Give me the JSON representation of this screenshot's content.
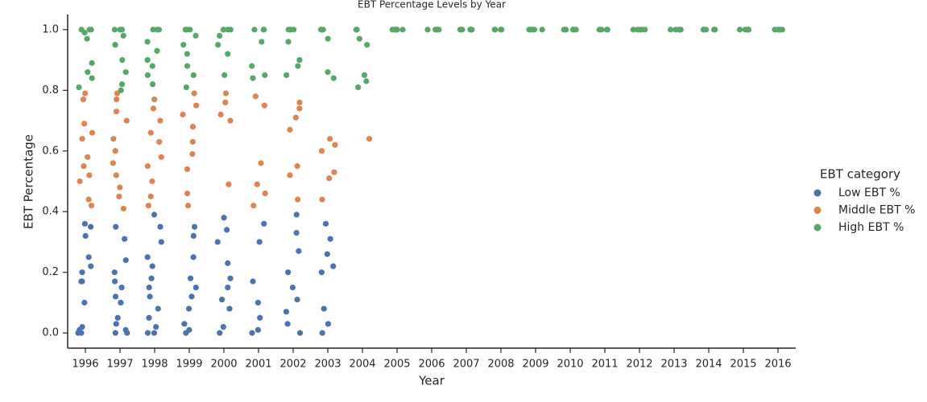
{
  "chart_data": {
    "type": "strip",
    "title": "EBT Percentage Levels by Year",
    "x_label": "Year",
    "y_label": "EBT Percentage",
    "legend_title": "EBT category",
    "legend_position": "right",
    "categories": [
      "1996",
      "1997",
      "1998",
      "1999",
      "2000",
      "2001",
      "2002",
      "2003",
      "2004",
      "2005",
      "2006",
      "2007",
      "2008",
      "2009",
      "2010",
      "2011",
      "2012",
      "2013",
      "2014",
      "2015",
      "2016"
    ],
    "ylim": [
      -0.05,
      1.05
    ],
    "yticks": [
      {
        "value": 0,
        "label": "0.0"
      },
      0.2,
      0.4,
      0.6,
      0.8,
      {
        "value": 1,
        "label": "1.0"
      }
    ],
    "grid": false,
    "series": [
      {
        "name": "Low EBT %",
        "color": "#4c72b0",
        "values": [
          [
            0,
            0,
            0.01,
            0.02,
            0.1,
            0.17,
            0.17,
            0.2,
            0.22,
            0.25,
            0.32,
            0.35,
            0.36
          ],
          [
            0,
            0,
            0.01,
            0.03,
            0.05,
            0.1,
            0.12,
            0.15,
            0.17,
            0.2,
            0.24,
            0.31,
            0.35
          ],
          [
            0,
            0,
            0.02,
            0.05,
            0.08,
            0.12,
            0.15,
            0.18,
            0.22,
            0.25,
            0.3,
            0.35,
            0.39
          ],
          [
            0,
            0.01,
            0.03,
            0.08,
            0.12,
            0.15,
            0.18,
            0.25,
            0.32,
            0.35
          ],
          [
            0,
            0.02,
            0.08,
            0.11,
            0.15,
            0.18,
            0.23,
            0.3,
            0.34,
            0.38
          ],
          [
            0,
            0.01,
            0.05,
            0.1,
            0.17,
            0.3,
            0.36
          ],
          [
            0,
            0.03,
            0.07,
            0.11,
            0.15,
            0.2,
            0.27,
            0.33,
            0.39
          ],
          [
            0,
            0.03,
            0.08,
            0.2,
            0.22,
            0.26,
            0.31,
            0.36
          ],
          [],
          [],
          [],
          [],
          [],
          [],
          [],
          [],
          [],
          [],
          [],
          [],
          []
        ]
      },
      {
        "name": "Middle EBT %",
        "color": "#dd8452",
        "values": [
          [
            0.42,
            0.44,
            0.5,
            0.52,
            0.55,
            0.58,
            0.64,
            0.66,
            0.69,
            0.77,
            0.79
          ],
          [
            0.41,
            0.45,
            0.48,
            0.52,
            0.56,
            0.6,
            0.64,
            0.7,
            0.73,
            0.77,
            0.79
          ],
          [
            0.42,
            0.45,
            0.5,
            0.55,
            0.58,
            0.63,
            0.66,
            0.7,
            0.74,
            0.77
          ],
          [
            0.42,
            0.46,
            0.54,
            0.59,
            0.63,
            0.68,
            0.72,
            0.75,
            0.79
          ],
          [
            0.49,
            0.7,
            0.72,
            0.76,
            0.79
          ],
          [
            0.42,
            0.46,
            0.49,
            0.56,
            0.75,
            0.78
          ],
          [
            0.44,
            0.52,
            0.55,
            0.67,
            0.71,
            0.74,
            0.76
          ],
          [
            0.44,
            0.51,
            0.53,
            0.6,
            0.62,
            0.64
          ],
          [
            0.64
          ],
          [],
          [],
          [],
          [],
          [],
          [],
          [],
          [],
          [],
          [],
          [],
          []
        ]
      },
      {
        "name": "High EBT %",
        "color": "#55a868",
        "values": [
          [
            0.81,
            0.84,
            0.86,
            0.89,
            0.97,
            0.99,
            1,
            1,
            1
          ],
          [
            0.8,
            0.82,
            0.86,
            0.9,
            0.95,
            0.98,
            1,
            1,
            1
          ],
          [
            0.82,
            0.85,
            0.88,
            0.9,
            0.93,
            0.96,
            1,
            1,
            1
          ],
          [
            0.81,
            0.85,
            0.88,
            0.92,
            0.95,
            0.98,
            1,
            1,
            1
          ],
          [
            0.85,
            0.92,
            0.95,
            0.98,
            1,
            1,
            1
          ],
          [
            0.84,
            0.85,
            0.88,
            0.96,
            1,
            1,
            1
          ],
          [
            0.85,
            0.88,
            0.9,
            0.96,
            1,
            1,
            1
          ],
          [
            0.84,
            0.86,
            0.97,
            1,
            1,
            1
          ],
          [
            0.81,
            0.83,
            0.85,
            0.95,
            0.97,
            1,
            1
          ],
          [
            1,
            1,
            1,
            1,
            1
          ],
          [
            1,
            1,
            1,
            1,
            1
          ],
          [
            1,
            1,
            1,
            1,
            1
          ],
          [
            1,
            1,
            1,
            1,
            1
          ],
          [
            1,
            1,
            1,
            1,
            1
          ],
          [
            1,
            1,
            1,
            1,
            1
          ],
          [
            1,
            1,
            1,
            1,
            1
          ],
          [
            1,
            1,
            1,
            1,
            1
          ],
          [
            1,
            1,
            1,
            1,
            1
          ],
          [
            1,
            1,
            1,
            1,
            1
          ],
          [
            1,
            1,
            1,
            1,
            1
          ],
          [
            1,
            1,
            1,
            1,
            1
          ]
        ]
      }
    ]
  }
}
